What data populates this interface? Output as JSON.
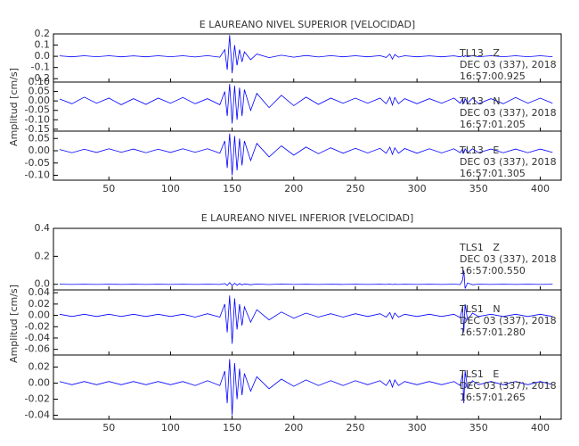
{
  "chart_data": [
    {
      "type": "line",
      "title": "E LAUREANO NIVEL SUPERIOR [VELOCIDAD]",
      "ylabel": "Amplitud [cm/s]",
      "xlim": [
        5,
        417
      ],
      "xticks": [
        50,
        100,
        150,
        200,
        250,
        300,
        350,
        400
      ],
      "x": [
        10,
        20,
        30,
        40,
        50,
        60,
        70,
        80,
        90,
        100,
        110,
        120,
        130,
        140,
        144,
        146,
        148,
        150,
        152,
        154,
        156,
        158,
        160,
        165,
        170,
        180,
        190,
        200,
        210,
        220,
        230,
        240,
        250,
        260,
        270,
        275,
        278,
        280,
        282,
        285,
        290,
        300,
        310,
        320,
        330,
        335,
        337,
        338,
        339,
        341,
        345,
        350,
        360,
        370,
        380,
        390,
        400,
        410
      ],
      "panels": [
        {
          "name": [
            "TL13   Z",
            "DEC 03 (337), 2018",
            "16:57:00.925"
          ],
          "color": "#0000ff",
          "ylim": [
            -0.23,
            0.2
          ],
          "yticks": [
            0.2,
            0.1,
            {
              "value": 0,
              "label": "0.0"
            },
            -0.1,
            -0.2
          ],
          "values": [
            0.004,
            -0.005,
            0.005,
            -0.004,
            0.005,
            -0.005,
            0.004,
            -0.005,
            0.005,
            -0.004,
            0.005,
            -0.006,
            0.006,
            -0.008,
            0.06,
            -0.12,
            0.19,
            -0.15,
            0.1,
            -0.08,
            0.06,
            -0.05,
            0.04,
            -0.03,
            0.02,
            -0.012,
            0.01,
            -0.008,
            0.007,
            -0.006,
            0.006,
            -0.005,
            0.005,
            -0.005,
            0.006,
            -0.01,
            0.02,
            -0.025,
            0.015,
            -0.008,
            0.005,
            -0.005,
            0.004,
            -0.005,
            0.004,
            -0.005,
            0.004,
            -0.004,
            0.005,
            -0.004,
            0.005,
            -0.004,
            0.005,
            -0.004,
            0.005,
            -0.004,
            0.005,
            -0.004
          ]
        },
        {
          "name": [
            "TL13   N",
            "DEC 03 (337), 2018",
            "16:57:01.205"
          ],
          "color": "#0000ff",
          "ylim": [
            -0.16,
            0.1
          ],
          "yticks": [
            {
              "value": 0.1,
              "label": "0.10"
            },
            0.05,
            {
              "value": 0,
              "label": "0.00"
            },
            -0.05,
            {
              "value": -0.1,
              "label": "-0.10"
            },
            -0.15
          ],
          "values": [
            0.01,
            -0.015,
            0.02,
            -0.012,
            0.015,
            -0.02,
            0.012,
            -0.018,
            0.015,
            -0.012,
            0.018,
            -0.015,
            0.012,
            -0.02,
            0.05,
            -0.08,
            0.09,
            -0.12,
            0.08,
            -0.1,
            0.07,
            -0.08,
            0.06,
            -0.05,
            0.04,
            -0.035,
            0.03,
            -0.025,
            0.02,
            -0.018,
            0.015,
            -0.012,
            0.015,
            -0.012,
            0.015,
            -0.015,
            0.02,
            -0.022,
            0.018,
            -0.015,
            0.012,
            -0.015,
            0.012,
            -0.012,
            0.015,
            -0.012,
            0.012,
            -0.015,
            0.012,
            -0.012,
            0.015,
            -0.015,
            0.012,
            -0.015,
            0.018,
            -0.012,
            0.015,
            -0.012
          ]
        },
        {
          "name": [
            "TL13   E",
            "DEC 03 (337), 2018",
            "16:57:01.305"
          ],
          "color": "#0000ff",
          "ylim": [
            -0.12,
            0.08
          ],
          "yticks": [
            0.05,
            {
              "value": 0,
              "label": "0.00"
            },
            -0.05,
            {
              "value": -0.1,
              "label": "-0.10"
            }
          ],
          "values": [
            0.005,
            -0.008,
            0.006,
            -0.007,
            0.008,
            -0.006,
            0.007,
            -0.008,
            0.006,
            -0.007,
            0.008,
            -0.006,
            0.008,
            -0.01,
            0.04,
            -0.07,
            0.07,
            -0.1,
            0.06,
            -0.08,
            0.05,
            -0.06,
            0.04,
            -0.04,
            0.03,
            -0.025,
            0.02,
            -0.018,
            0.015,
            -0.012,
            0.012,
            -0.01,
            0.01,
            -0.009,
            0.01,
            -0.01,
            0.015,
            -0.015,
            0.012,
            -0.01,
            0.009,
            -0.01,
            0.008,
            -0.009,
            0.008,
            -0.008,
            0.008,
            -0.009,
            0.008,
            -0.008,
            0.008,
            -0.008,
            0.007,
            -0.008,
            0.007,
            -0.008,
            0.007,
            -0.007
          ]
        }
      ]
    },
    {
      "type": "line",
      "title": "E LAUREANO NIVEL INFERIOR [VELOCIDAD]",
      "ylabel": "Amplitud [cm/s]",
      "xlim": [
        5,
        417
      ],
      "xticks": [
        50,
        100,
        150,
        200,
        250,
        300,
        350,
        400
      ],
      "x": [
        10,
        20,
        30,
        40,
        50,
        60,
        70,
        80,
        90,
        100,
        110,
        120,
        130,
        140,
        144,
        146,
        148,
        150,
        152,
        154,
        156,
        158,
        160,
        165,
        170,
        180,
        190,
        200,
        210,
        220,
        230,
        240,
        250,
        260,
        270,
        275,
        278,
        280,
        282,
        285,
        290,
        300,
        310,
        320,
        330,
        335,
        337,
        338,
        339,
        341,
        345,
        350,
        360,
        370,
        380,
        390,
        400,
        410
      ],
      "panels": [
        {
          "name": [
            "TLS1   Z",
            "DEC 03 (337), 2018",
            "16:57:00.550"
          ],
          "color": "#0000ff",
          "ylim": [
            -0.04,
            0.4
          ],
          "yticks": [
            0.4,
            0.2,
            {
              "value": 0,
              "label": "0.0"
            }
          ],
          "values": [
            0.001,
            -0.001,
            0.001,
            -0.001,
            0.001,
            -0.001,
            0.001,
            -0.001,
            0.001,
            -0.001,
            0.001,
            -0.001,
            0.001,
            -0.001,
            0.005,
            -0.008,
            0.012,
            -0.01,
            0.008,
            -0.006,
            0.005,
            -0.004,
            0.003,
            -0.003,
            0.002,
            -0.002,
            0.002,
            -0.001,
            0.001,
            -0.001,
            0.001,
            -0.001,
            0.001,
            -0.001,
            0.001,
            -0.001,
            0.002,
            -0.002,
            0.001,
            -0.001,
            0.001,
            -0.001,
            0.001,
            -0.001,
            0.001,
            -0.002,
            0.03,
            0.1,
            -0.03,
            0.01,
            -0.003,
            0.001,
            -0.001,
            0.001,
            -0.001,
            0.001,
            -0.001,
            0.001
          ]
        },
        {
          "name": [
            "TLS1   N",
            "DEC 03 (337), 2018",
            "16:57:01.280"
          ],
          "color": "#0000ff",
          "ylim": [
            -0.07,
            0.045
          ],
          "yticks": [
            0.04,
            0.02,
            {
              "value": 0,
              "label": "0.00"
            },
            -0.02,
            -0.04,
            -0.06
          ],
          "values": [
            0.002,
            -0.002,
            0.002,
            -0.002,
            0.002,
            -0.002,
            0.002,
            -0.002,
            0.002,
            -0.002,
            0.002,
            -0.003,
            0.003,
            -0.003,
            0.02,
            -0.03,
            0.035,
            -0.05,
            0.03,
            -0.025,
            0.02,
            -0.018,
            0.015,
            -0.012,
            0.01,
            -0.008,
            0.006,
            -0.005,
            0.004,
            -0.003,
            0.003,
            -0.003,
            0.003,
            -0.002,
            0.003,
            -0.003,
            0.005,
            -0.006,
            0.004,
            -0.003,
            0.002,
            -0.002,
            0.002,
            -0.002,
            0.002,
            -0.004,
            0.015,
            -0.03,
            0.02,
            -0.008,
            0.004,
            -0.002,
            0.002,
            -0.002,
            0.002,
            -0.002,
            0.002,
            -0.002
          ]
        },
        {
          "name": [
            "TLS1   E",
            "DEC 03 (337), 2018",
            "16:57:01.265"
          ],
          "color": "#0000ff",
          "ylim": [
            -0.045,
            0.035
          ],
          "yticks": [
            0.02,
            {
              "value": 0,
              "label": "0.00"
            },
            -0.02,
            -0.04
          ],
          "values": [
            0.002,
            -0.002,
            0.002,
            -0.002,
            0.002,
            -0.002,
            0.002,
            -0.002,
            0.002,
            -0.002,
            0.002,
            -0.003,
            0.003,
            -0.003,
            0.015,
            -0.025,
            0.03,
            -0.04,
            0.025,
            -0.02,
            0.018,
            -0.015,
            0.012,
            -0.01,
            0.008,
            -0.007,
            0.005,
            -0.004,
            0.004,
            -0.003,
            0.003,
            -0.003,
            0.003,
            -0.002,
            0.003,
            -0.003,
            0.004,
            -0.005,
            0.004,
            -0.003,
            0.002,
            -0.002,
            0.002,
            -0.002,
            0.002,
            -0.003,
            0.012,
            -0.025,
            0.015,
            -0.006,
            0.003,
            -0.002,
            0.002,
            -0.002,
            0.002,
            -0.002,
            0.002,
            -0.002
          ]
        }
      ]
    }
  ]
}
